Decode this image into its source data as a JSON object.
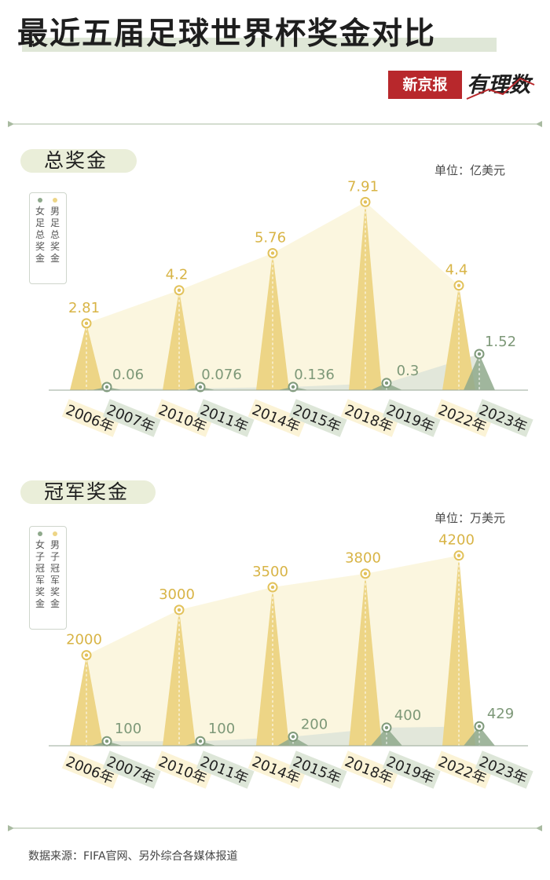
{
  "title": "最近五届足球世界杯奖金对比",
  "logo": {
    "brand": "新京报",
    "sub": "有理数"
  },
  "source": "数据来源：FIFA官网、另外综合各媒体报道",
  "colors": {
    "men": "#edd586",
    "men_dark": "#e2c25b",
    "men_label": "#d8b446",
    "men_band": "#fbf5dc",
    "women": "#8fa98c",
    "women_dark": "#7f9a7b",
    "women_label": "#7d9878",
    "women_band": "#dfe6d9",
    "rule": "#a9bba1"
  },
  "sections": [
    {
      "label": "总奖金",
      "unit": "单位：亿美元",
      "legend": {
        "women": "女足总奖金",
        "men": "男足总奖金"
      }
    },
    {
      "label": "冠军奖金",
      "unit": "单位：万美元",
      "legend": {
        "women": "女子冠军奖金",
        "men": "男子冠军奖金"
      }
    }
  ],
  "chart_data": [
    {
      "type": "area",
      "title": "总奖金",
      "unit": "亿美元",
      "series": [
        {
          "name": "男足总奖金",
          "x": [
            "2006年",
            "2010年",
            "2014年",
            "2018年",
            "2022年"
          ],
          "values": [
            2.81,
            4.2,
            5.76,
            7.91,
            4.4
          ],
          "labels": [
            "2.81",
            "4.2",
            "5.76",
            "7.91",
            "4.4"
          ]
        },
        {
          "name": "女足总奖金",
          "x": [
            "2007年",
            "2011年",
            "2015年",
            "2019年",
            "2023年"
          ],
          "values": [
            0.06,
            0.076,
            0.136,
            0.3,
            1.52
          ],
          "labels": [
            "0.06",
            "0.076",
            "0.136",
            "0.3",
            "1.52"
          ]
        }
      ]
    },
    {
      "type": "area",
      "title": "冠军奖金",
      "unit": "万美元",
      "series": [
        {
          "name": "男子冠军奖金",
          "x": [
            "2006年",
            "2010年",
            "2014年",
            "2018年",
            "2022年"
          ],
          "values": [
            2000,
            3000,
            3500,
            3800,
            4200
          ],
          "labels": [
            "2000",
            "3000",
            "3500",
            "3800",
            "4200"
          ]
        },
        {
          "name": "女子冠军奖金",
          "x": [
            "2007年",
            "2011年",
            "2015年",
            "2019年",
            "2023年"
          ],
          "values": [
            100,
            100,
            200,
            400,
            429
          ],
          "labels": [
            "100",
            "100",
            "200",
            "400",
            "429"
          ]
        }
      ]
    }
  ]
}
